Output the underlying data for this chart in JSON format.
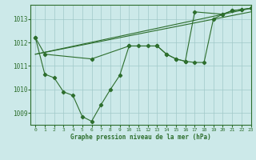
{
  "title": "Graphe pression niveau de la mer (hPa)",
  "background_color": "#cce9e9",
  "line_color": "#2d6e2d",
  "grid_color": "#a0c8c8",
  "xlim": [
    -0.5,
    23
  ],
  "ylim": [
    1008.5,
    1013.6
  ],
  "yticks": [
    1009,
    1010,
    1011,
    1012,
    1013
  ],
  "xticks": [
    0,
    1,
    2,
    3,
    4,
    5,
    6,
    7,
    8,
    9,
    10,
    11,
    12,
    13,
    14,
    15,
    16,
    17,
    18,
    19,
    20,
    21,
    22,
    23
  ],
  "series": [
    {
      "x": [
        0,
        1,
        2,
        3,
        4,
        5,
        6,
        7,
        8,
        9,
        10,
        11,
        12,
        13,
        14,
        15,
        16,
        17,
        18,
        19,
        20,
        21,
        22,
        23
      ],
      "y": [
        1012.2,
        1010.65,
        1010.5,
        1009.9,
        1009.75,
        1008.85,
        1008.65,
        1009.35,
        1010.0,
        1010.6,
        1011.85,
        1011.85,
        1011.85,
        1011.85,
        1011.5,
        1011.3,
        1011.2,
        1011.15,
        1011.15,
        1013.0,
        1013.2,
        1013.35,
        1013.4,
        1013.45
      ],
      "marker": true
    },
    {
      "x": [
        0,
        23
      ],
      "y": [
        1011.5,
        1013.45
      ],
      "marker": false
    },
    {
      "x": [
        0,
        23
      ],
      "y": [
        1011.5,
        1013.3
      ],
      "marker": false
    },
    {
      "x": [
        0,
        1,
        6,
        10,
        13,
        14,
        15,
        16,
        17,
        20,
        21,
        22,
        23
      ],
      "y": [
        1012.2,
        1011.5,
        1011.3,
        1011.85,
        1011.85,
        1011.5,
        1011.3,
        1011.2,
        1013.3,
        1013.2,
        1013.35,
        1013.4,
        1013.45
      ],
      "marker": true
    }
  ]
}
